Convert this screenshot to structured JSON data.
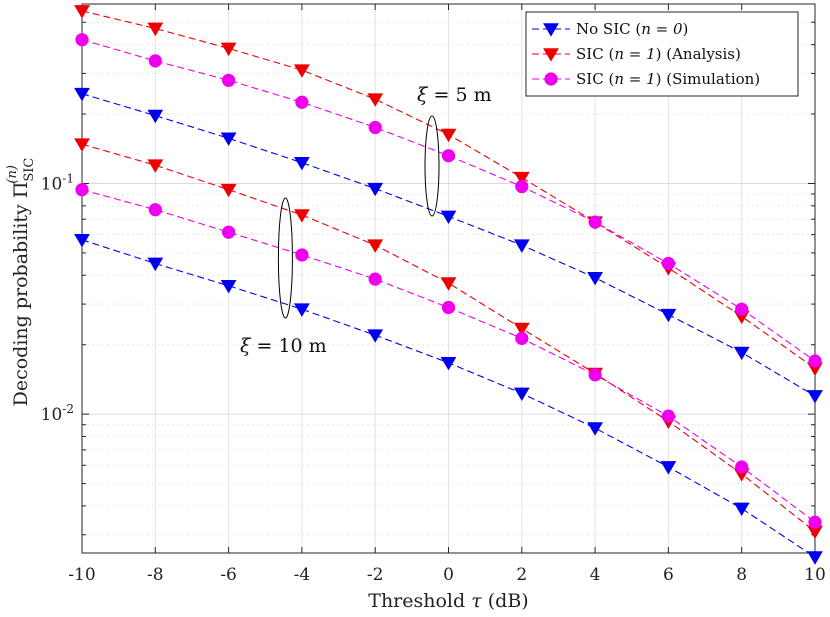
{
  "chart_data": {
    "type": "line",
    "title": "",
    "xlabel": "Threshold τ (dB)",
    "ylabel": "Decoding probability Π_SIC^(n)",
    "ylabel_main": "Decoding probability Π",
    "ylabel_sub": "SIC",
    "ylabel_sup": "(n)",
    "xscale": "linear",
    "yscale": "log",
    "xlim": [
      -10,
      10
    ],
    "ylim": [
      0.0025,
      0.6
    ],
    "grid": true,
    "legend_position": "top-right",
    "x": [
      -10,
      -8,
      -6,
      -4,
      -2,
      0,
      2,
      4,
      6,
      8,
      10
    ],
    "xtick_labels": [
      "-10",
      "-8",
      "-6",
      "-4",
      "-2",
      "0",
      "2",
      "4",
      "6",
      "8",
      "10"
    ],
    "ytick_labels": [
      {
        "base": "10",
        "exp": "-1",
        "value": 0.1
      },
      {
        "base": "10",
        "exp": "-2",
        "value": 0.01
      }
    ],
    "series": [
      {
        "name": "No SIC (n = 0)",
        "legend_label": "No SIC (",
        "legend_math": "n = 0",
        "legend_tail": ")",
        "group": "xi=5m",
        "color": "#0000ee",
        "marker": "triangle-down",
        "values": [
          0.245,
          0.197,
          0.157,
          0.123,
          0.095,
          0.072,
          0.054,
          0.039,
          0.027,
          0.0185,
          0.012
        ]
      },
      {
        "name": "SIC (n = 1) (Analysis)",
        "legend_label": "SIC (",
        "legend_math": "n = 1",
        "legend_tail": ") (Analysis)",
        "group": "xi=5m",
        "color": "#ee0000",
        "marker": "triangle-down",
        "values": [
          0.56,
          0.47,
          0.385,
          0.31,
          0.232,
          0.163,
          0.106,
          0.068,
          0.043,
          0.0265,
          0.0158
        ]
      },
      {
        "name": "SIC (n = 1) (Simulation)",
        "legend_label": "SIC (",
        "legend_math": "n = 1",
        "legend_tail": ") (Simulation)",
        "group": "xi=5m",
        "color": "#ee00ee",
        "marker": "circle",
        "values": [
          0.42,
          0.34,
          0.28,
          0.225,
          0.175,
          0.132,
          0.097,
          0.068,
          0.045,
          0.0285,
          0.017
        ]
      },
      {
        "name": "No SIC (n = 0)",
        "group": "xi=10m",
        "color": "#0000ee",
        "marker": "triangle-down",
        "values": [
          0.057,
          0.045,
          0.036,
          0.0285,
          0.022,
          0.0167,
          0.0123,
          0.0087,
          0.0059,
          0.0039,
          0.0024
        ]
      },
      {
        "name": "SIC (n = 1) (Analysis)",
        "group": "xi=10m",
        "color": "#ee0000",
        "marker": "triangle-down",
        "values": [
          0.148,
          0.12,
          0.094,
          0.073,
          0.054,
          0.037,
          0.0235,
          0.015,
          0.0093,
          0.0055,
          0.0031
        ]
      },
      {
        "name": "SIC (n = 1) (Simulation)",
        "group": "xi=10m",
        "color": "#ee00ee",
        "marker": "circle",
        "values": [
          0.094,
          0.077,
          0.0615,
          0.049,
          0.0385,
          0.029,
          0.0213,
          0.0148,
          0.0098,
          0.0059,
          0.0034
        ]
      }
    ],
    "annotations": [
      {
        "text": "ξ = 5 m",
        "symbol": "ξ",
        "rest": " = 5 m"
      },
      {
        "text": "ξ = 10 m",
        "symbol": "ξ",
        "rest": " = 10 m"
      }
    ]
  }
}
